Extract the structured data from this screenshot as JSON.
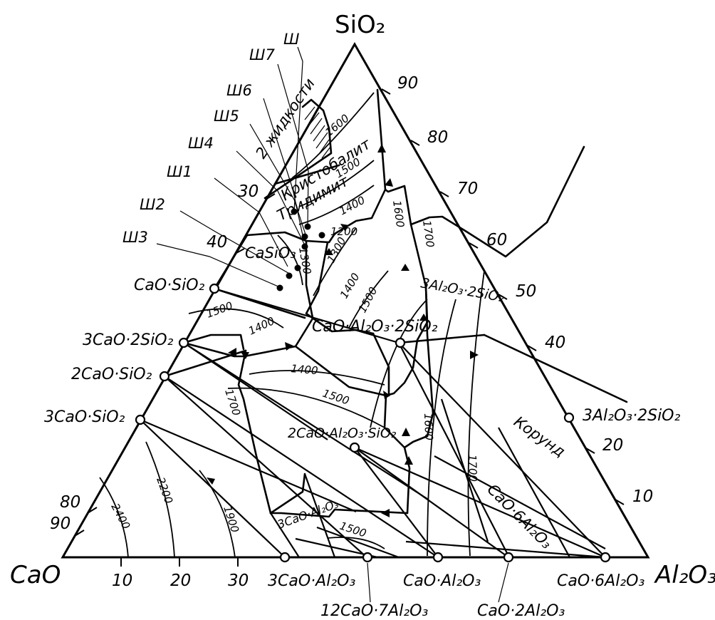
{
  "diagram": {
    "apices": {
      "top": "SiO₂",
      "left": "CaO",
      "right": "Al₂O₃"
    },
    "left_edge_ticks": [
      "30",
      "40",
      "80",
      "90"
    ],
    "right_edge_ticks": [
      "90",
      "80",
      "70",
      "60",
      "50",
      "40",
      "20",
      "10"
    ],
    "bottom_ticks": [
      "10",
      "20",
      "30"
    ],
    "compounds": {
      "cs": "CaO·SiO₂",
      "c3s2": "3CaO·2SiO₂",
      "c2s": "2CaO·SiO₂",
      "c3s": "3CaO·SiO₂",
      "c3a": "3CaO·Al₂O₃",
      "c12a7": "12CaO·7Al₂O₃",
      "ca": "CaO·Al₂O₃",
      "ca2": "CaO·2Al₂O₃",
      "ca6": "CaO·6Al₂O₃",
      "a3s2_edge": "3Al₂O₃·2SiO₂",
      "cas2": "CaO·Al₂O₃·2SiO₂",
      "c2as": "2CaO·Al₂O₃·SiO₂"
    },
    "phase_fields": {
      "two_liquids": "2 жидкости",
      "cristobalite": "Кристобалит",
      "tridymite": "Тридимит",
      "casio3": "CaSiO₃",
      "mullite_field": "3Al₂O₃·2SiO₂",
      "corundum": "Корунд",
      "ca6_field": "CaO·6Al₂O₃",
      "c3a_field": "3CaO·Al₂O₃"
    },
    "samples": [
      "Ш",
      "Ш7",
      "Ш6",
      "Ш5",
      "Ш4",
      "Ш1",
      "Ш2",
      "Ш3"
    ],
    "isotherms": [
      "1600",
      "1500",
      "1400",
      "1300",
      "1200",
      "1300",
      "1400",
      "1500",
      "1600",
      "1700",
      "1500",
      "1400",
      "1400",
      "1500",
      "1700",
      "1600",
      "1700",
      "2400",
      "2200",
      "1900",
      "1500"
    ]
  }
}
